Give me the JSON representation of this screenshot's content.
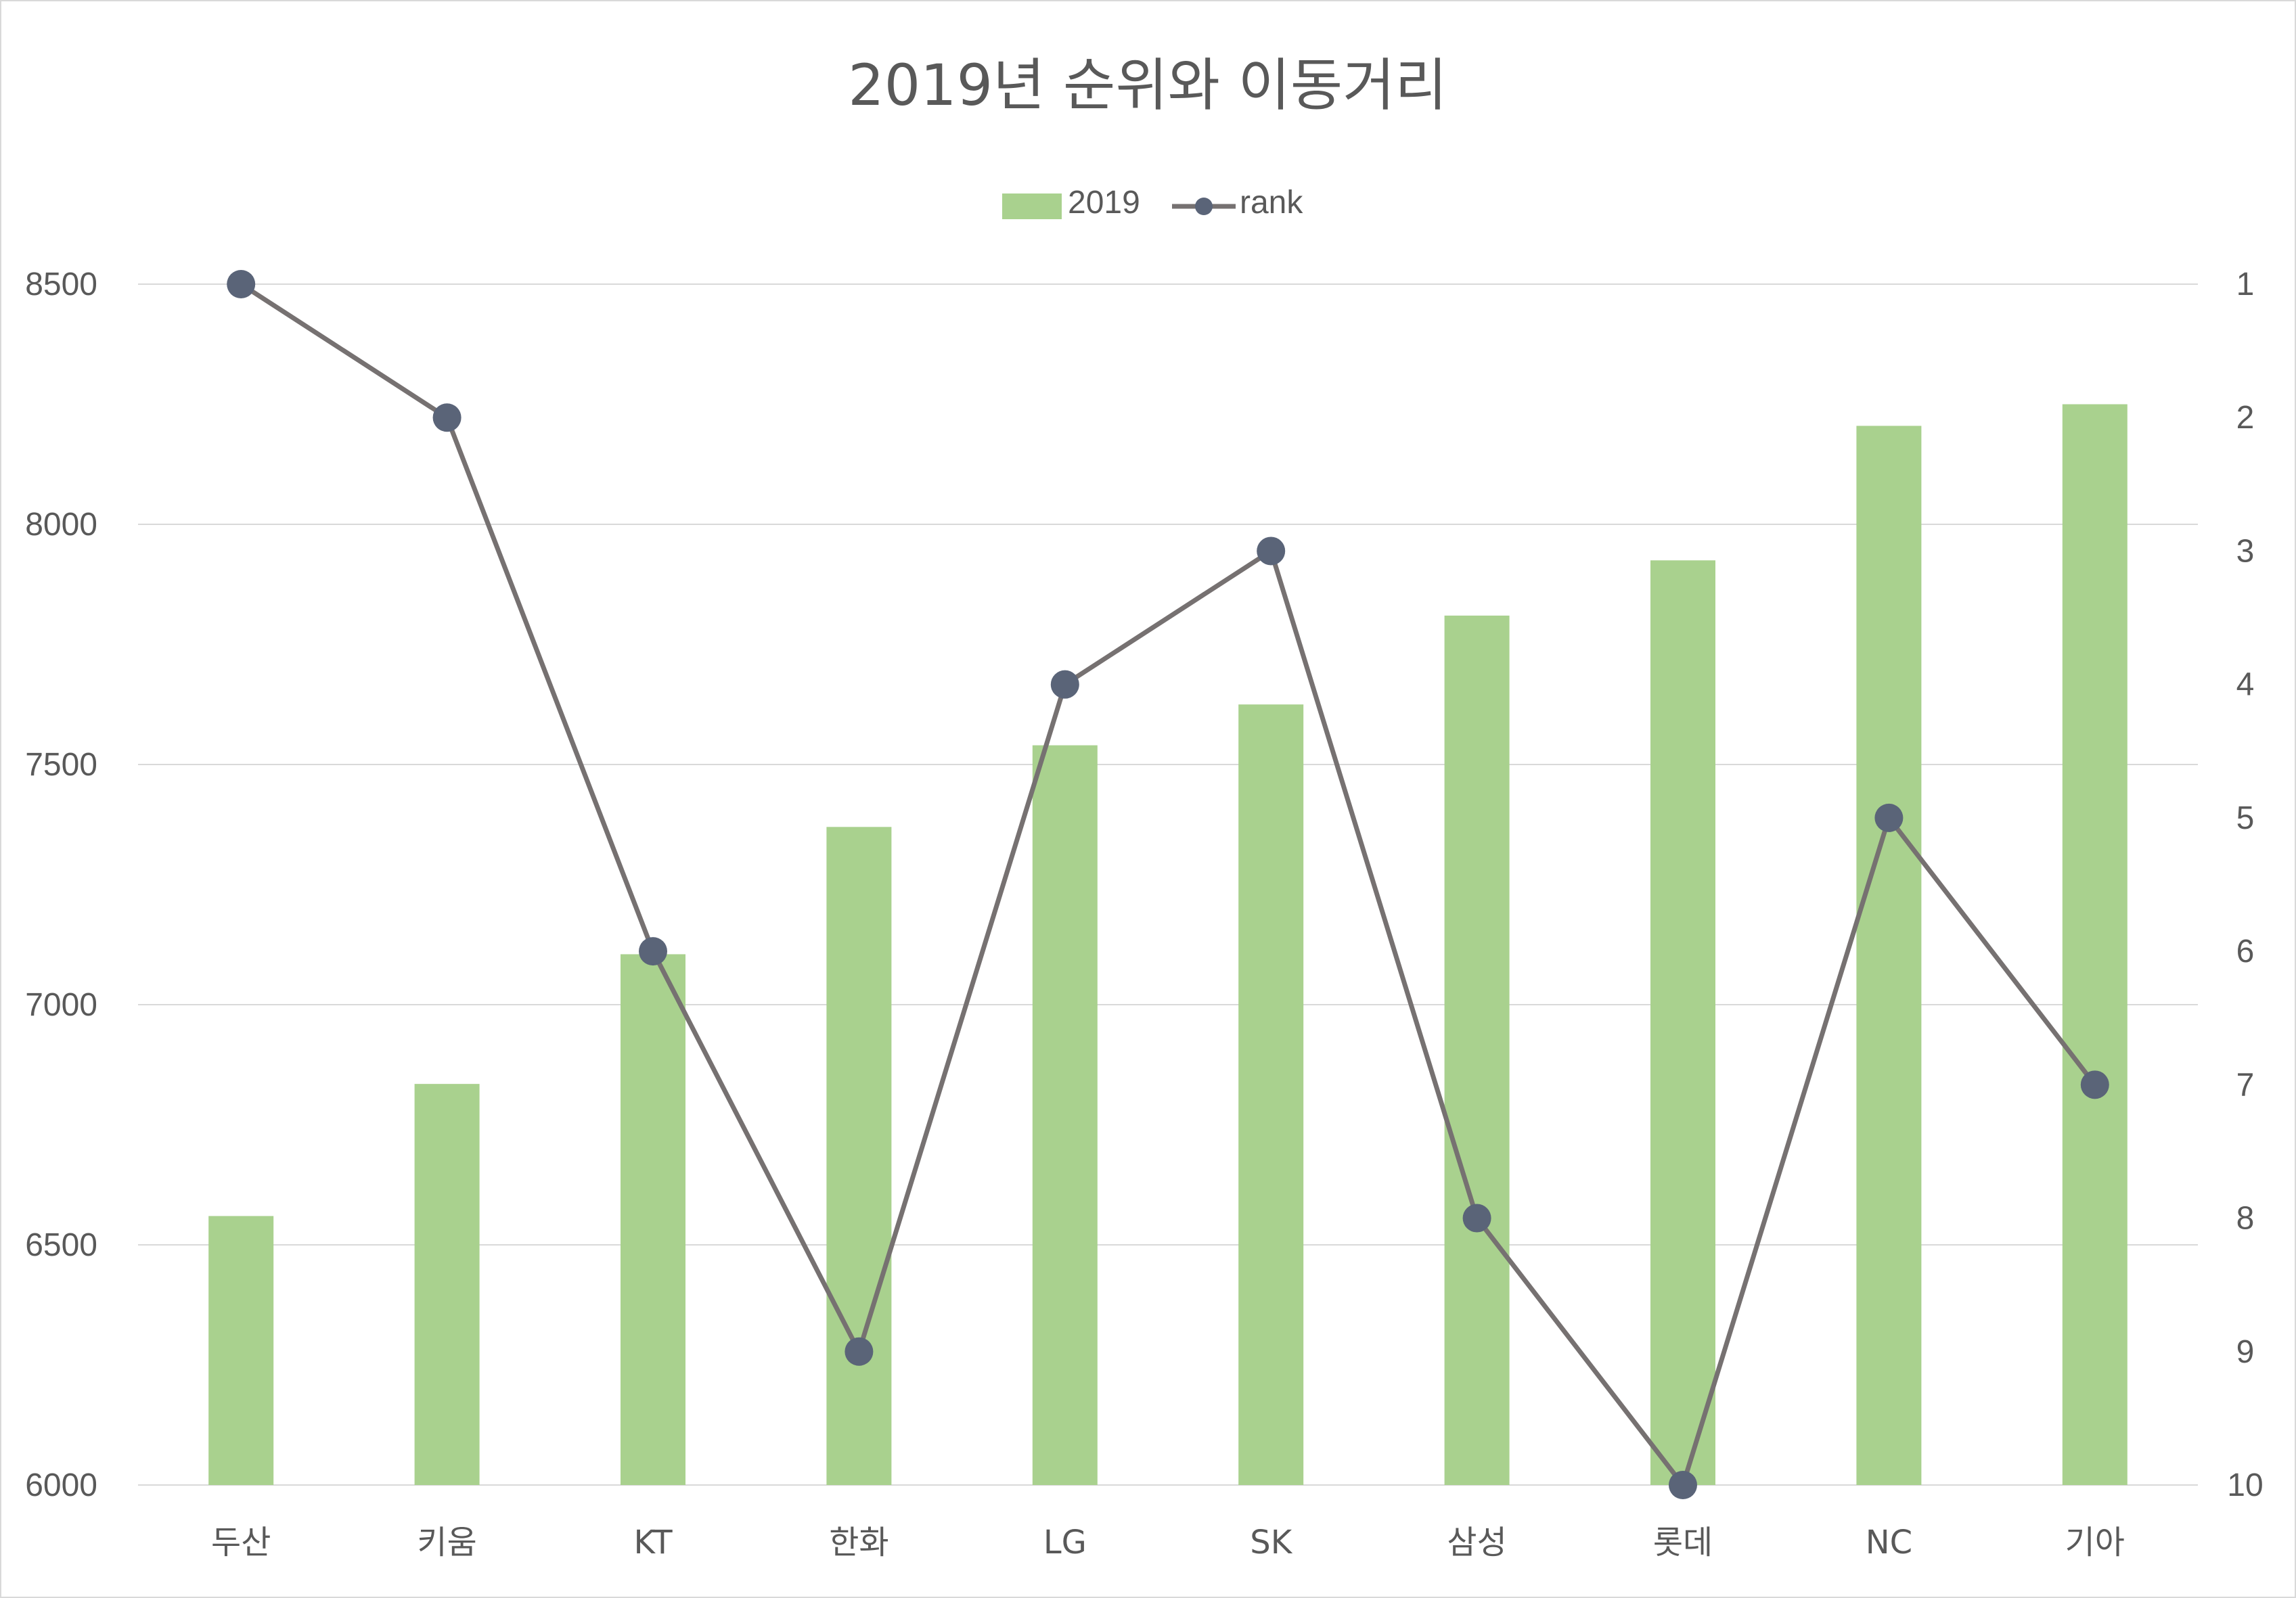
{
  "chart_data": {
    "type": "bar",
    "title": "2019년 순위와 이동거리",
    "categories": [
      "두산",
      "키움",
      "KT",
      "한화",
      "LG",
      "SK",
      "삼성",
      "롯데",
      "NC",
      "기아"
    ],
    "series": [
      {
        "name": "2019",
        "type": "bar",
        "axis": "left",
        "color": "#a9d18e",
        "values": [
          6560,
          6835,
          7105,
          7370,
          7540,
          7625,
          7810,
          7925,
          8205,
          8250
        ]
      },
      {
        "name": "rank",
        "type": "line",
        "axis": "right",
        "line_color": "#767171",
        "marker_color": "#5a6478",
        "values": [
          1,
          2,
          6,
          9,
          4,
          3,
          8,
          10,
          5,
          7
        ]
      }
    ],
    "y_left": {
      "min": 6000,
      "max": 8500,
      "ticks": [
        6000,
        6500,
        7000,
        7500,
        8000,
        8500
      ]
    },
    "y_right": {
      "min": 1,
      "max": 10,
      "reversed": true,
      "ticks": [
        1,
        2,
        3,
        4,
        5,
        6,
        7,
        8,
        9,
        10
      ]
    },
    "grid": true,
    "legend_position": "top"
  }
}
